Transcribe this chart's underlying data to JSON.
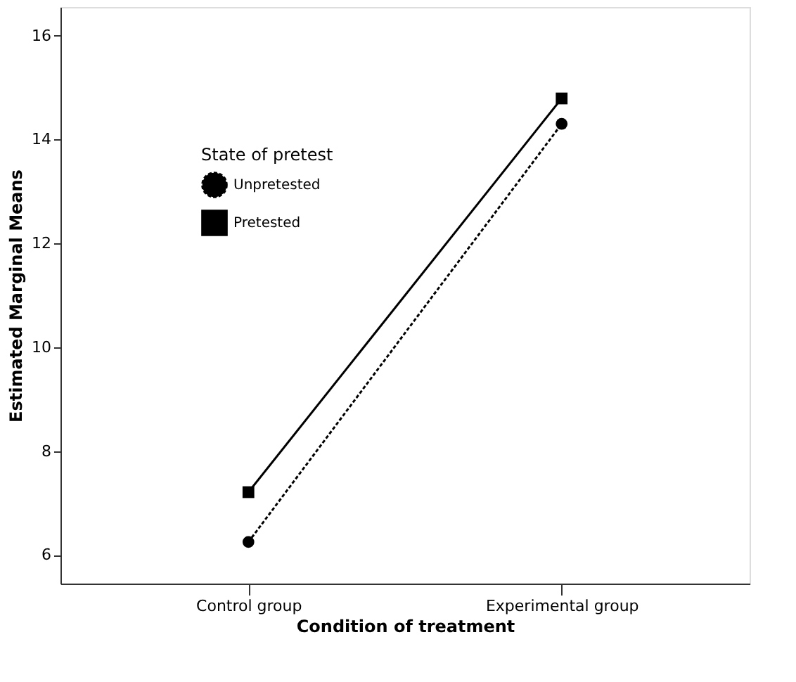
{
  "chart_data": {
    "type": "line",
    "xlabel": "Condition of treatment",
    "ylabel": "Estimated Marginal Means",
    "legend_title": "State of pretest",
    "categories": [
      "Control group",
      "Experimental group"
    ],
    "series": [
      {
        "name": "Unpretested",
        "color": "#000000",
        "values": [
          6.25,
          14.3
        ],
        "line_style": "dashed",
        "marker": "circle"
      },
      {
        "name": "Pretested",
        "color": "#000000",
        "values": [
          7.21,
          14.79
        ],
        "line_style": "solid",
        "marker": "square"
      }
    ],
    "ylim": [
      5.45,
      16.55
    ],
    "yticks": [
      6,
      8,
      10,
      12,
      14,
      16
    ],
    "grid": false,
    "legend": "top left"
  }
}
